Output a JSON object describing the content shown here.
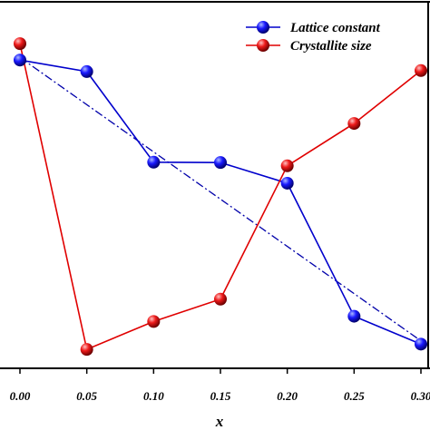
{
  "chart_data": {
    "type": "line",
    "title": "",
    "xlabel": "x",
    "ylabel": "",
    "x": [
      0.0,
      0.05,
      0.1,
      0.15,
      0.2,
      0.25,
      0.3
    ],
    "x_tick_labels": [
      "0.00",
      "0.05",
      "0.10",
      "0.15",
      "0.20",
      "0.25",
      "0.30"
    ],
    "xlim": [
      -0.012,
      0.3
    ],
    "ylim": [
      0,
      100
    ],
    "grid": false,
    "legend_position": "top-right",
    "series": [
      {
        "name": "Lattice constant",
        "color": "#0000cc",
        "marker": "sphere",
        "values": [
          91.1,
          87.6,
          60.0,
          59.9,
          53.6,
          13.1,
          4.6
        ]
      },
      {
        "name": "Crystallite size",
        "color": "#e00000",
        "marker": "sphere",
        "values": [
          96.1,
          3.0,
          11.5,
          18.3,
          58.9,
          71.8,
          87.9
        ]
      }
    ],
    "fit_line": {
      "style": "dash-dot",
      "color": "#0000aa",
      "x": [
        0.0,
        0.3
      ],
      "values": [
        91.9,
        5.6
      ]
    }
  }
}
